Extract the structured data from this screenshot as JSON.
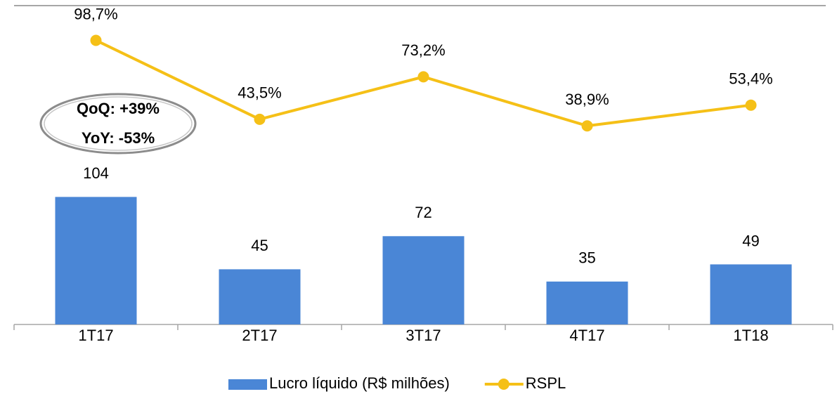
{
  "chart_data": {
    "type": "bar",
    "categories": [
      "1T17",
      "2T17",
      "3T17",
      "4T17",
      "1T18"
    ],
    "series": [
      {
        "name": "Lucro líquido (R$ milhões)",
        "type": "bar",
        "color": "#4a86d6",
        "values": [
          104,
          45,
          72,
          35,
          49
        ]
      },
      {
        "name": "RSPL",
        "type": "line",
        "axis": "y2",
        "color": "#f5c017",
        "values": [
          98.7,
          43.5,
          73.2,
          38.9,
          53.4
        ],
        "value_labels": [
          "98,7%",
          "43,5%",
          "73,2%",
          "38,9%",
          "53,4%"
        ]
      }
    ],
    "ylim": [
      0,
      260
    ],
    "y2lim": [
      -100,
      123
    ],
    "annotations": [
      "QoQ: +39%",
      "YoY: -53%"
    ]
  }
}
